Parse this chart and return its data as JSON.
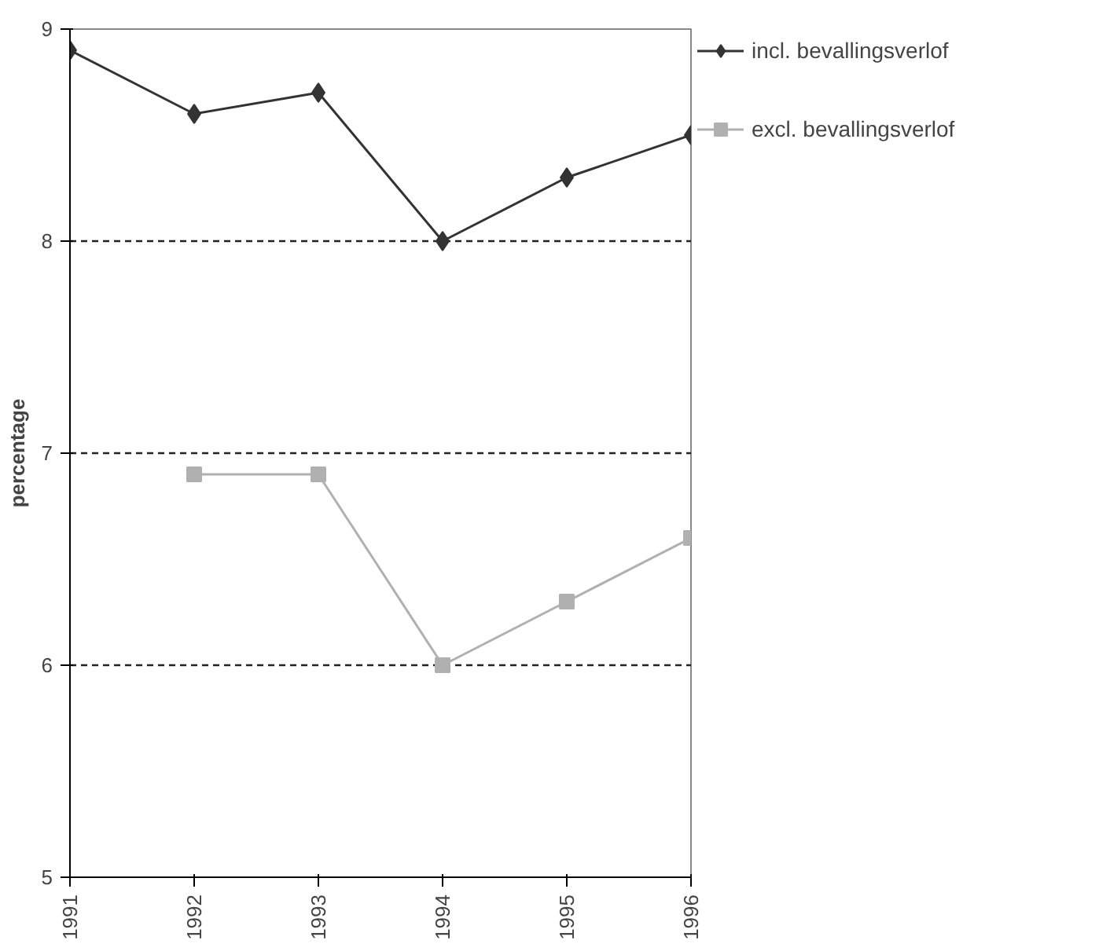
{
  "chart_data": {
    "type": "line",
    "ylabel": "percentage",
    "x": [
      1991,
      1992,
      1993,
      1994,
      1995,
      1996
    ],
    "xlim": [
      1991,
      1996
    ],
    "xticks": [
      1991,
      1992,
      1993,
      1994,
      1995,
      1996
    ],
    "ylim": [
      5,
      9
    ],
    "yticks": [
      5,
      6,
      7,
      8,
      9
    ],
    "grid": "y",
    "legend": "top right",
    "series": [
      {
        "name": "incl. bevallingsverlof",
        "color": "#333333",
        "marker": "diamond",
        "values": [
          8.9,
          8.6,
          8.7,
          8.0,
          8.3,
          8.5
        ]
      },
      {
        "name": "excl. bevallingsverlof",
        "color": "#b0b0b0",
        "marker": "square",
        "values": [
          null,
          6.9,
          6.9,
          6.0,
          6.3,
          6.6
        ]
      }
    ]
  }
}
